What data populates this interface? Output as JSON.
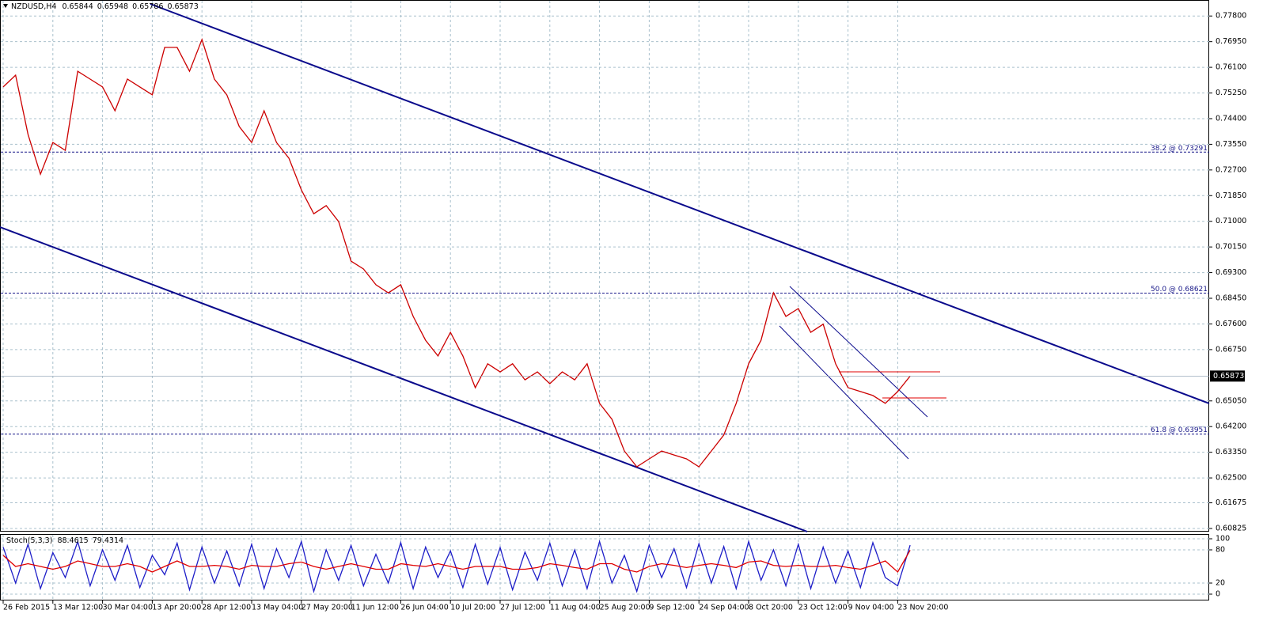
{
  "chart_data": [
    {
      "type": "line",
      "header": {
        "symbol": "NZDUSD,H4",
        "open": 0.65844,
        "high": 0.65948,
        "low": 0.65786
      },
      "categories": [
        "26 Feb 2015",
        null,
        null,
        null,
        "13 Mar 12:00",
        null,
        null,
        null,
        "30 Mar 04:00",
        null,
        null,
        null,
        "13 Apr 20:00",
        null,
        null,
        null,
        "28 Apr 12:00",
        null,
        null,
        null,
        "13 May 04:00",
        null,
        null,
        null,
        "27 May 20:00",
        null,
        null,
        null,
        "11 Jun 12:00",
        null,
        null,
        null,
        "26 Jun 04:00",
        null,
        null,
        null,
        "10 Jul 20:00",
        null,
        null,
        null,
        "27 Jul 12:00",
        null,
        null,
        null,
        "11 Aug 04:00",
        null,
        null,
        null,
        "25 Aug 20:00",
        null,
        null,
        null,
        "9 Sep 12:00",
        null,
        null,
        null,
        "24 Sep 04:00",
        null,
        null,
        null,
        "8 Oct 20:00",
        null,
        null,
        null,
        "23 Oct 12:00",
        null,
        null,
        null,
        "9 Nov 04:00",
        null,
        null,
        null,
        "23 Nov 20:00",
        null
      ],
      "series": [
        {
          "color": "#cc0000",
          "values": [
            0.7545,
            0.7584,
            0.7388,
            0.7256,
            0.7361,
            0.7335,
            0.7597,
            0.7571,
            0.7545,
            0.7466,
            0.7571,
            0.7545,
            0.7519,
            0.7676,
            0.7676,
            0.7597,
            0.7702,
            0.7571,
            0.7519,
            0.7414,
            0.7361,
            0.7466,
            0.7361,
            0.7309,
            0.7204,
            0.7125,
            0.7152,
            0.7099,
            0.6968,
            0.6942,
            0.689,
            0.6863,
            0.689,
            0.6785,
            0.6706,
            0.6654,
            0.6732,
            0.6654,
            0.6549,
            0.6628,
            0.6601,
            0.6628,
            0.6575,
            0.6601,
            0.6562,
            0.6601,
            0.6575,
            0.6628,
            0.6497,
            0.6444,
            0.6339,
            0.6287,
            0.6313,
            0.6339,
            0.6326,
            0.6313,
            0.6287,
            0.6339,
            0.6392,
            0.6497,
            0.6628,
            0.6706,
            0.6863,
            0.6785,
            0.6811,
            0.6732,
            0.6759,
            0.6628,
            0.6549,
            0.6536,
            0.6523,
            0.6497,
            0.6536,
            0.65873
          ]
        }
      ],
      "ylim": [
        0.6072,
        0.7833
      ],
      "yticks": [
        {
          "value": 0.778,
          "label": "0.77800"
        },
        {
          "value": 0.7695,
          "label": "0.76950"
        },
        {
          "value": 0.761,
          "label": "0.76100"
        },
        {
          "value": 0.7525,
          "label": "0.75250"
        },
        {
          "value": 0.744,
          "label": "0.74400"
        },
        {
          "value": 0.7355,
          "label": "0.73550"
        },
        {
          "value": 0.727,
          "label": "0.72700"
        },
        {
          "value": 0.7185,
          "label": "0.71850"
        },
        {
          "value": 0.71,
          "label": "0.71000"
        },
        {
          "value": 0.7015,
          "label": "0.70150"
        },
        {
          "value": 0.693,
          "label": "0.69300"
        },
        {
          "value": 0.6845,
          "label": "0.68450"
        },
        {
          "value": 0.676,
          "label": "0.67600"
        },
        {
          "value": 0.6675,
          "label": "0.66750"
        },
        {
          "value": 0.6505,
          "label": "0.65050"
        },
        {
          "value": 0.642,
          "label": "0.64200"
        },
        {
          "value": 0.6335,
          "label": "0.63350"
        },
        {
          "value": 0.625,
          "label": "0.62500"
        },
        {
          "value": 0.61675,
          "label": "0.61675"
        },
        {
          "value": 0.60825,
          "label": "0.60825"
        }
      ],
      "annotations": [
        {
          "label": "38.2 @ 0.73291",
          "value": 0.73291
        },
        {
          "label": "50.0 @ 0.68621",
          "value": 0.68621
        },
        {
          "label": "61.8 @ 0.63951",
          "value": 0.63951
        }
      ],
      "grid": true
    },
    {
      "type": "line",
      "title": "Stoch(5,3,3)",
      "series": [
        {
          "color": "#1e1ec8",
          "values": [
            85,
            20,
            90,
            10,
            75,
            30,
            95,
            15,
            80,
            25,
            88,
            12,
            70,
            35,
            92,
            8,
            85,
            20,
            78,
            15,
            90,
            10,
            82,
            30,
            95,
            5,
            80,
            25,
            88,
            15,
            72,
            20,
            93,
            10,
            85,
            30,
            78,
            12,
            90,
            18,
            84,
            8,
            76,
            25,
            92,
            15,
            80,
            10,
            95,
            20,
            70,
            5,
            88,
            30,
            82,
            12,
            91,
            20,
            86,
            10,
            95,
            25,
            80,
            15,
            90,
            10,
            85,
            20,
            78,
            12,
            93,
            30,
            15,
            88.4615
          ]
        },
        {
          "color": "#e00000",
          "values": [
            70,
            50,
            55,
            50,
            45,
            50,
            60,
            55,
            50,
            50,
            55,
            50,
            40,
            50,
            60,
            50,
            50,
            52,
            50,
            45,
            52,
            50,
            50,
            55,
            58,
            50,
            45,
            50,
            55,
            50,
            45,
            45,
            55,
            52,
            50,
            55,
            50,
            45,
            50,
            50,
            50,
            45,
            45,
            48,
            55,
            52,
            48,
            45,
            55,
            55,
            45,
            40,
            50,
            55,
            52,
            48,
            52,
            55,
            52,
            48,
            58,
            60,
            52,
            50,
            52,
            50,
            50,
            52,
            48,
            45,
            52,
            60,
            40,
            79.4314
          ]
        }
      ],
      "ylim": [
        0,
        100
      ],
      "yticks": [
        0,
        20,
        80,
        100
      ],
      "grid": true
    }
  ]
}
